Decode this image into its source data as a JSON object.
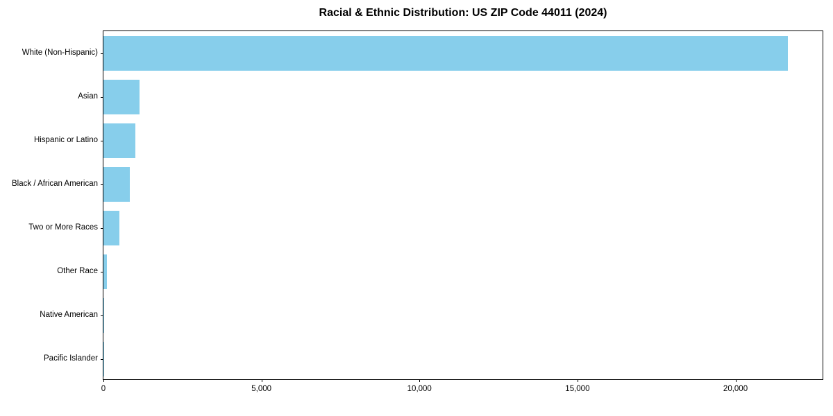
{
  "title": "Racial & Ethnic Distribution: US ZIP Code 44011 (2024)",
  "chart_data": {
    "type": "bar",
    "orientation": "horizontal",
    "title": "Racial & Ethnic Distribution: US ZIP Code 44011 (2024)",
    "categories": [
      "White (Non-Hispanic)",
      "Asian",
      "Hispanic or Latino",
      "Black / African American",
      "Two or More Races",
      "Other Race",
      "Native American",
      "Pacific Islander"
    ],
    "values": [
      21650,
      1150,
      1000,
      830,
      500,
      120,
      20,
      5
    ],
    "bar_color": "#87CEEB",
    "xlabel": "",
    "ylabel": "",
    "xlim": [
      0,
      22800
    ],
    "x_ticks": [
      {
        "value": 0,
        "label": "0"
      },
      {
        "value": 5000,
        "label": "5,000"
      },
      {
        "value": 10000,
        "label": "10,000"
      },
      {
        "value": 15000,
        "label": "15,000"
      },
      {
        "value": 20000,
        "label": "20,000"
      }
    ],
    "grid": false,
    "legend": false
  }
}
